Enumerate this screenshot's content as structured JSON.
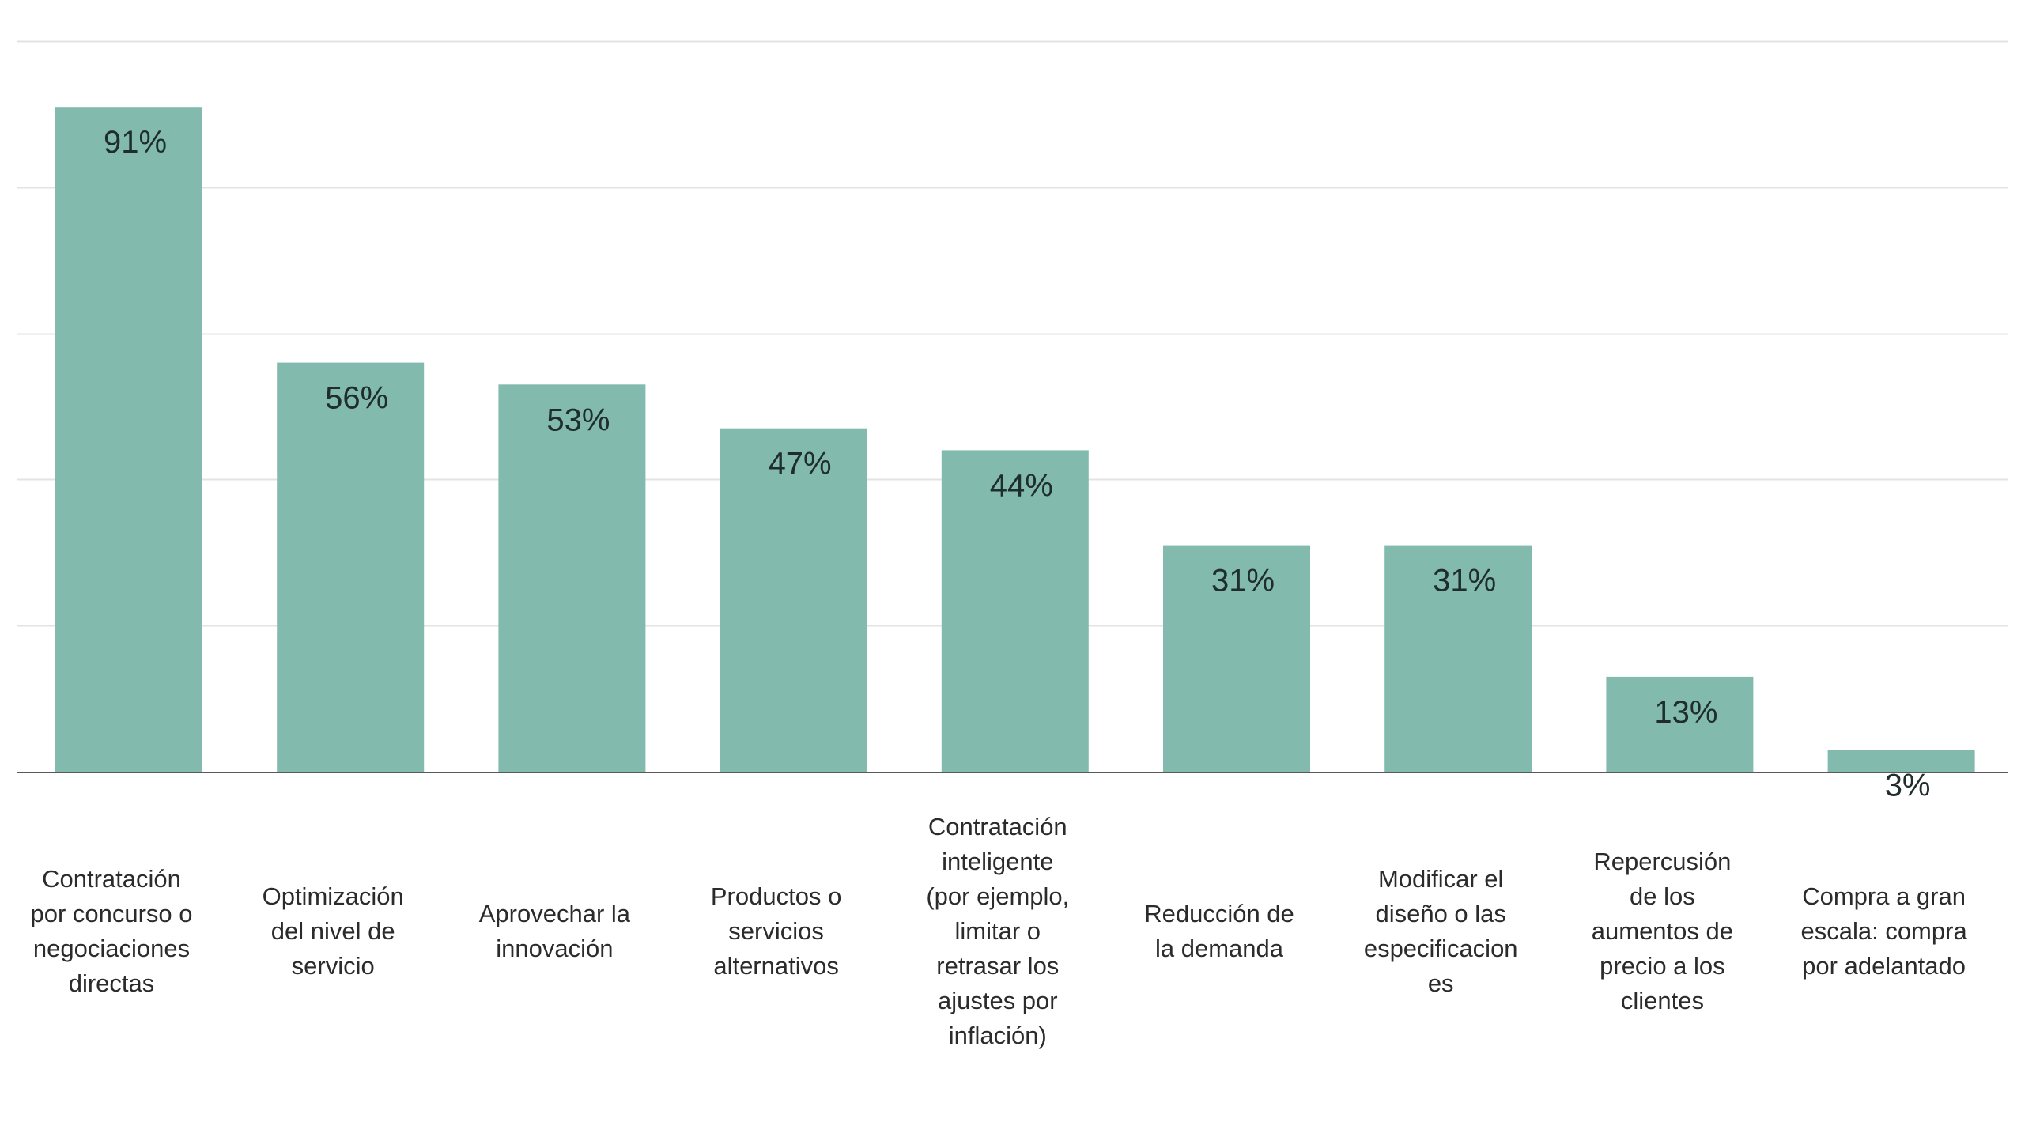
{
  "chart_data": {
    "type": "bar",
    "categories": [
      "Contratación por concurso o negociaciones directas",
      "Optimización del nivel de servicio",
      "Aprovechar la innovación",
      "Productos o servicios alternativos",
      "Contratación inteligente (por ejemplo, limitar o retrasar los ajustes por inflación)",
      "Reducción de la demanda",
      "Modificar el diseño o las especificaciones",
      "Repercusión de los aumentos de precio a los clientes",
      "Compra a gran escala: compra por adelantado"
    ],
    "category_lines": [
      [
        "Contratación",
        "por concurso o",
        "negociaciones",
        "directas"
      ],
      [
        "Optimización",
        "del nivel de",
        "servicio"
      ],
      [
        "Aprovechar la",
        "innovación"
      ],
      [
        "Productos o",
        "servicios",
        "alternativos"
      ],
      [
        "Contratación",
        "inteligente",
        "(por ejemplo,",
        "limitar o",
        "retrasar los",
        "ajustes por",
        "inflación)"
      ],
      [
        "Reducción de",
        "la demanda"
      ],
      [
        "Modificar el",
        "diseño o las",
        "especificacion",
        "es"
      ],
      [
        "Repercusión",
        "de los",
        "aumentos de",
        "precio a los",
        "clientes"
      ],
      [
        "Compra a gran",
        "escala: compra",
        "por adelantado"
      ]
    ],
    "values": [
      91,
      56,
      53,
      47,
      44,
      31,
      31,
      13,
      3
    ],
    "value_labels": [
      "91%",
      "56%",
      "53%",
      "47%",
      "44%",
      "31%",
      "31%",
      "13%",
      "3%"
    ],
    "unit": "%",
    "ylim": [
      0,
      100
    ],
    "grid": true,
    "legend": "none",
    "bar_color": "#82bbad",
    "gridline_color": "#e3e3e3",
    "axis_color": "#5a5a5a",
    "value_label_color": "#1f2d2c",
    "category_label_color": "#2b2b2b"
  }
}
